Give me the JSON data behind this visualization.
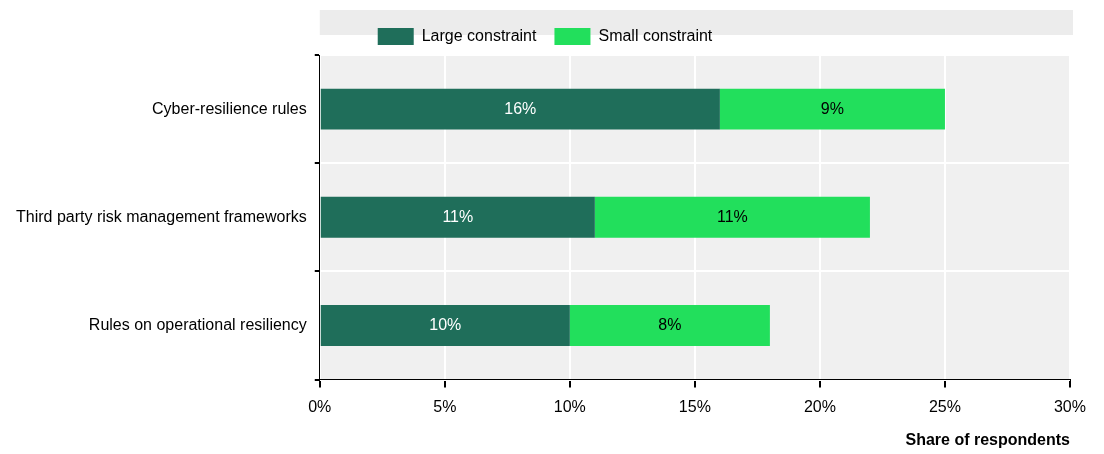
{
  "chart_data": {
    "type": "bar",
    "orientation": "horizontal",
    "stacked": true,
    "xlabel": "Share of respondents",
    "categories": [
      "Cyber-resilience rules",
      "Third party risk management frameworks",
      "Rules on operational resiliency"
    ],
    "series": [
      {
        "name": "Large constraint",
        "color": "#1f6e5a",
        "values": [
          16,
          11,
          10
        ],
        "value_labels": [
          "16%",
          "11%",
          "10%"
        ]
      },
      {
        "name": "Small constraint",
        "color": "#22df5c",
        "values": [
          9,
          11,
          8
        ],
        "value_labels": [
          "9%",
          "11%",
          "8%"
        ]
      }
    ],
    "xlim": [
      0,
      30
    ],
    "xticks": [
      {
        "value": 0,
        "label": "0%"
      },
      {
        "value": 5,
        "label": "5%"
      },
      {
        "value": 10,
        "label": "10%"
      },
      {
        "value": 15,
        "label": "15%"
      },
      {
        "value": 20,
        "label": "20%"
      },
      {
        "value": 25,
        "label": "25%"
      },
      {
        "value": 30,
        "label": "30%"
      }
    ],
    "grid": true,
    "legend": "top"
  }
}
